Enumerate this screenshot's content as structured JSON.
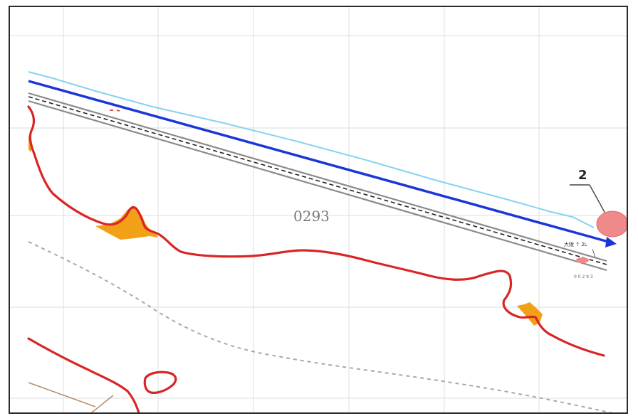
{
  "map": {
    "parcel_number": "0293",
    "callout_number": "2",
    "small_label": "大阪 ↑ 2L",
    "tiny_label": "0 0 2 9 3",
    "colors": {
      "road_blue": "#1a36d8",
      "water_line": "#86d3f0",
      "boundary_red": "#d92525",
      "fill_orange": "#f2a017",
      "callout_pink": "#f08a8a",
      "grid": "#e4e4e4",
      "rail_gray": "#8a8a8a",
      "dashed_path": "#a8a8a8",
      "brown_line": "#b58e6a"
    }
  }
}
